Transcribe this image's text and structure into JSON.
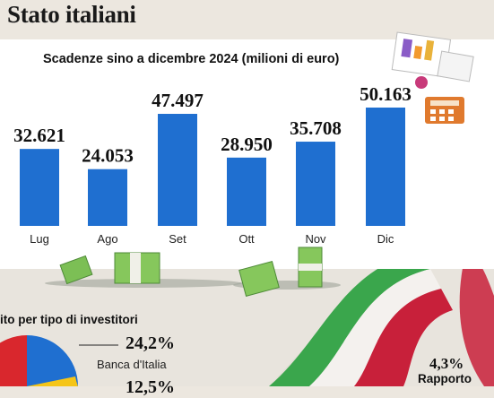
{
  "page": {
    "title": "Stato italiani"
  },
  "chart_data": {
    "type": "bar",
    "subtitle": "Scadenze sino a dicembre 2024 (milioni di euro)",
    "categories": [
      "Lug",
      "Ago",
      "Set",
      "Ott",
      "Nov",
      "Dic"
    ],
    "values": [
      32621,
      24053,
      47497,
      28950,
      35708,
      50163
    ],
    "value_labels": [
      "32.621",
      "24.053",
      "47.497",
      "28.950",
      "35.708",
      "50.163"
    ],
    "ylim": [
      0,
      50163
    ],
    "grid": false,
    "color": "#1f6fd0"
  },
  "investors": {
    "title": "ito per tipo di investitori",
    "items": [
      {
        "pct": "24,2%",
        "label": "Banca d'Italia"
      },
      {
        "pct": "12,5%",
        "label": ""
      }
    ],
    "colors": [
      "#d9272d",
      "#1f6fd0",
      "#f5c518"
    ]
  },
  "ratio": {
    "pct": "4,3%",
    "label": "Rapporto"
  },
  "icons": [
    "money-stack-icon",
    "calculator-icon",
    "documents-icon",
    "italian-flag-ribbon"
  ]
}
